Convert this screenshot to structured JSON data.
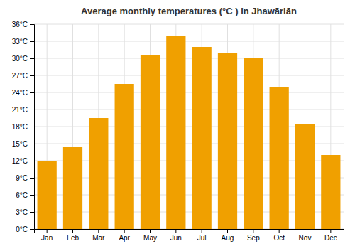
{
  "chart_data": {
    "type": "bar",
    "title": "Average monthly temperatures (°C ) in Jhawāriān",
    "categories": [
      "Jan",
      "Feb",
      "Mar",
      "Apr",
      "May",
      "Jun",
      "Jul",
      "Aug",
      "Sep",
      "Oct",
      "Nov",
      "Dec"
    ],
    "values": [
      12,
      14.5,
      19.5,
      25.5,
      30.5,
      34,
      32,
      31,
      30,
      25,
      18.5,
      13
    ],
    "color": "#F0A000",
    "ylim": [
      0,
      36
    ],
    "yticks": [
      {
        "value": 0,
        "label": "0°C"
      },
      {
        "value": 3,
        "label": "3°C"
      },
      {
        "value": 6,
        "label": "6°C"
      },
      {
        "value": 9,
        "label": "9°C"
      },
      {
        "value": 12,
        "label": "12°C"
      },
      {
        "value": 15,
        "label": "15°C"
      },
      {
        "value": 18,
        "label": "18°C"
      },
      {
        "value": 21,
        "label": "21°C"
      },
      {
        "value": 24,
        "label": "24°C"
      },
      {
        "value": 27,
        "label": "27°C"
      },
      {
        "value": 30,
        "label": "30°C"
      },
      {
        "value": 33,
        "label": "33°C"
      },
      {
        "value": 36,
        "label": "36°C"
      }
    ],
    "grid": true
  }
}
